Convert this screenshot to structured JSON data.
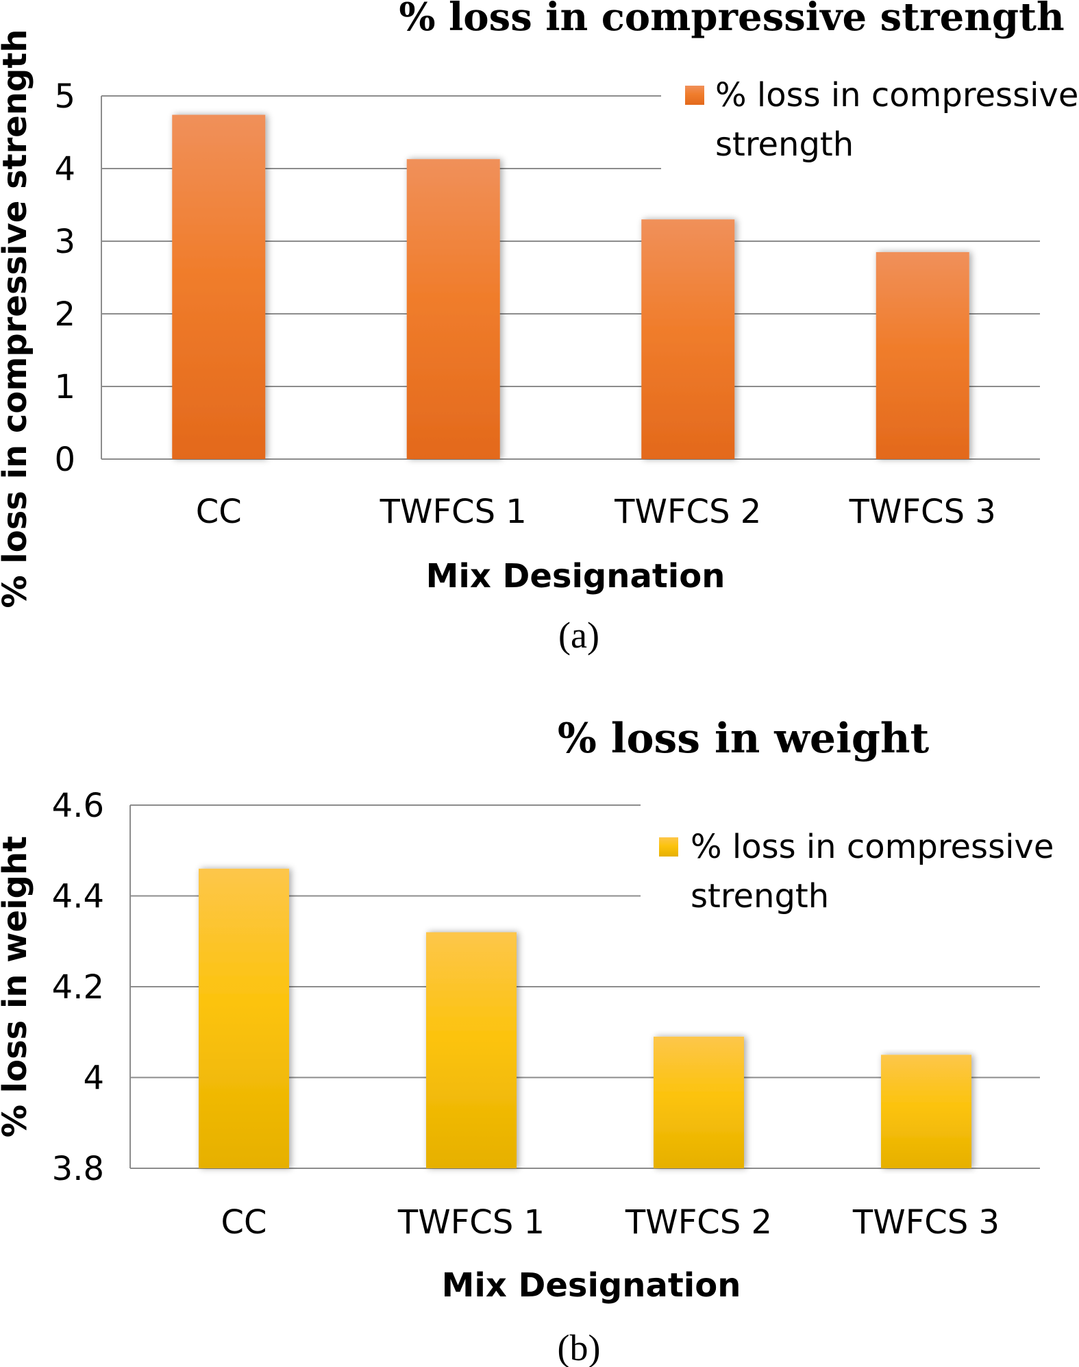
{
  "chart_data": [
    {
      "type": "bar",
      "title": "% loss in compressive strength",
      "xlabel": "Mix Designation",
      "ylabel": "% loss in compressive strength",
      "categories": [
        "CC",
        "TWFCS 1",
        "TWFCS 2",
        "TWFCS 3"
      ],
      "series": [
        {
          "name": "% loss in compressive strength",
          "values": [
            4.74,
            4.13,
            3.3,
            2.85
          ]
        }
      ],
      "ylim": [
        0,
        5
      ],
      "yticks": [
        "0",
        "1",
        "2",
        "3",
        "4",
        "5"
      ],
      "grid": true,
      "legend_position": "top-right",
      "bar_color": "#f07f2e",
      "sublabel": "(a)"
    },
    {
      "type": "bar",
      "title": "% loss in weight",
      "xlabel": "Mix Designation",
      "ylabel": "% loss in weight",
      "categories": [
        "CC",
        "TWFCS 1",
        "TWFCS 2",
        "TWFCS 3"
      ],
      "series": [
        {
          "name": "% loss in compressive strength",
          "values": [
            4.46,
            4.32,
            4.09,
            4.05
          ]
        }
      ],
      "ylim": [
        3.8,
        4.6
      ],
      "yticks": [
        "3.8",
        "4",
        "4.2",
        "4.4",
        "4.6"
      ],
      "grid": true,
      "legend_position": "top-right",
      "bar_color": "#fcc30d",
      "sublabel": "(b)"
    }
  ]
}
